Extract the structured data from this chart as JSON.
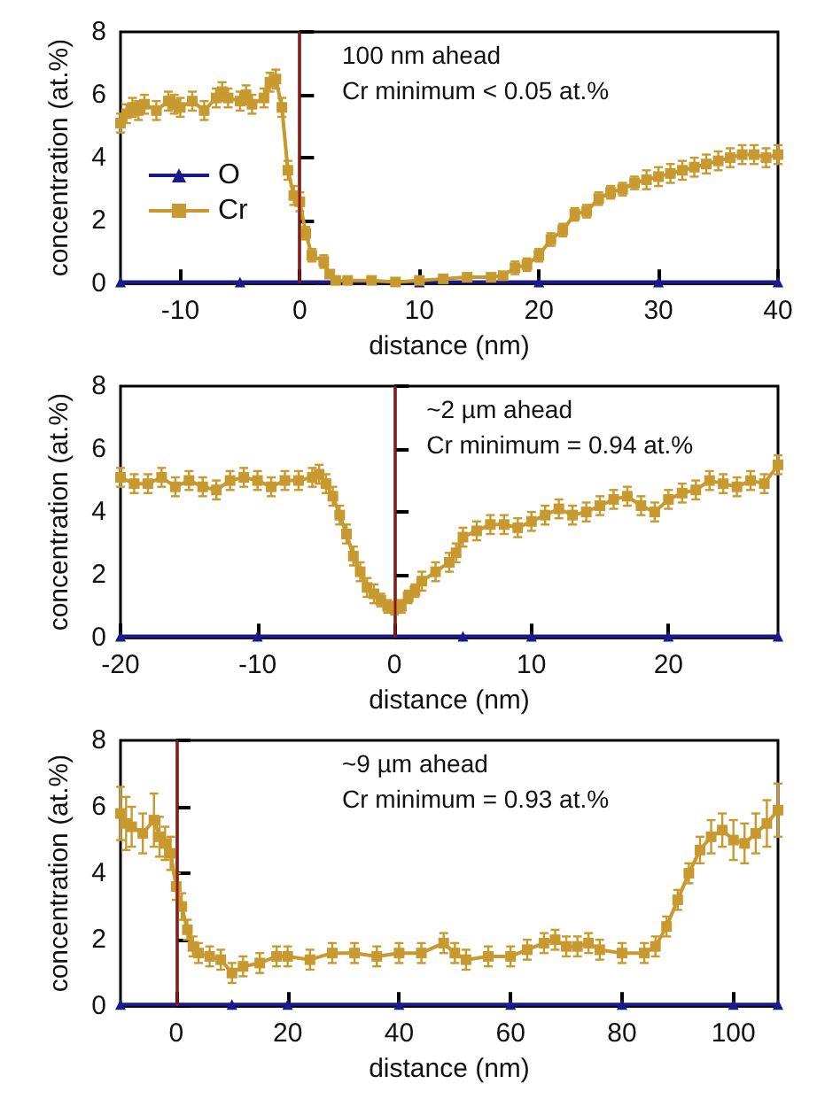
{
  "chart_data": [
    {
      "type": "line",
      "xlabel": "distance (nm)",
      "ylabel": "concentration (at.%)",
      "annotations": [
        "100 nm ahead",
        "Cr minimum < 0.05 at.%"
      ],
      "xlim": [
        -15,
        40
      ],
      "xticks": [
        -10,
        0,
        10,
        20,
        30,
        40
      ],
      "ylim": [
        0,
        8
      ],
      "yticks": [
        0,
        2,
        4,
        6,
        8
      ],
      "legend": "left",
      "grid": false,
      "ref_lines": [
        {
          "axis": "x",
          "value": 0,
          "color": "#8b1a1a"
        }
      ],
      "series": [
        {
          "name": "O",
          "color": "#1a1a8c",
          "marker": "triangle",
          "x": [
            -15,
            -5,
            10,
            20,
            30,
            40
          ],
          "values": [
            0.05,
            0.05,
            0.05,
            0.05,
            0.05,
            0.05
          ]
        },
        {
          "name": "Cr",
          "color": "#c8992e",
          "marker": "square",
          "x": [
            -15,
            -14.5,
            -14,
            -13.5,
            -13,
            -12,
            -11,
            -10.5,
            -10,
            -9,
            -8,
            -7,
            -6.5,
            -6,
            -5,
            -4.5,
            -4,
            -3,
            -2.5,
            -2,
            -1.5,
            -1,
            -0.5,
            0,
            0.5,
            1,
            2,
            2.5,
            3,
            4,
            6,
            8,
            10,
            12,
            14,
            16,
            17,
            18,
            19,
            20,
            21,
            22,
            23,
            24,
            25,
            26,
            27,
            28,
            29,
            30,
            31,
            32,
            33,
            34,
            35,
            36,
            37,
            38,
            39,
            40
          ],
          "values": [
            5.1,
            5.4,
            5.6,
            5.5,
            5.7,
            5.5,
            5.8,
            5.7,
            5.6,
            5.8,
            5.5,
            5.9,
            6.1,
            5.9,
            5.8,
            6.0,
            5.7,
            5.9,
            6.4,
            6.5,
            5.6,
            3.6,
            2.8,
            2.6,
            1.6,
            0.9,
            0.7,
            0.3,
            0.1,
            0.1,
            0.1,
            0.05,
            0.1,
            0.15,
            0.2,
            0.2,
            0.25,
            0.5,
            0.6,
            0.9,
            1.4,
            1.7,
            2.2,
            2.3,
            2.7,
            2.9,
            3.0,
            3.2,
            3.3,
            3.4,
            3.5,
            3.6,
            3.7,
            3.8,
            3.9,
            4.0,
            4.1,
            4.1,
            4.0,
            4.1
          ],
          "errors": [
            0.3,
            0.3,
            0.3,
            0.3,
            0.3,
            0.3,
            0.3,
            0.3,
            0.3,
            0.3,
            0.3,
            0.3,
            0.3,
            0.3,
            0.3,
            0.3,
            0.3,
            0.3,
            0.3,
            0.3,
            0.3,
            0.3,
            0.3,
            0.3,
            0.2,
            0.2,
            0.2,
            0.1,
            0.1,
            0.1,
            0.1,
            0.1,
            0.1,
            0.1,
            0.1,
            0.1,
            0.1,
            0.2,
            0.2,
            0.2,
            0.2,
            0.2,
            0.2,
            0.2,
            0.2,
            0.2,
            0.2,
            0.2,
            0.3,
            0.3,
            0.3,
            0.3,
            0.3,
            0.3,
            0.3,
            0.3,
            0.3,
            0.3,
            0.3,
            0.3
          ]
        }
      ]
    },
    {
      "type": "line",
      "xlabel": "distance (nm)",
      "ylabel": "concentration (at.%)",
      "annotations": [
        "~2 µm ahead",
        "Cr minimum = 0.94 at.%"
      ],
      "xlim": [
        -20,
        28
      ],
      "xticks": [
        -20,
        -10,
        0,
        10,
        20
      ],
      "ylim": [
        0,
        8
      ],
      "yticks": [
        0,
        2,
        4,
        6,
        8
      ],
      "legend": false,
      "grid": false,
      "ref_lines": [
        {
          "axis": "x",
          "value": 0,
          "color": "#8b1a1a"
        }
      ],
      "series": [
        {
          "color": "#1a1a8c",
          "marker": "triangle",
          "x": [
            -20,
            -10,
            5,
            10,
            20,
            28
          ],
          "values": [
            0.05,
            0.05,
            0.05,
            0.05,
            0.05,
            0.05
          ]
        },
        {
          "color": "#c8992e",
          "marker": "square",
          "x": [
            -20,
            -19,
            -18,
            -17,
            -16,
            -15,
            -14,
            -13,
            -12,
            -11,
            -10,
            -9,
            -8,
            -7,
            -6,
            -5.5,
            -5,
            -4.5,
            -4,
            -3.5,
            -3,
            -2.5,
            -2,
            -1.5,
            -1,
            -0.5,
            0,
            0.5,
            1,
            1.5,
            2,
            3,
            4,
            4.5,
            5,
            6,
            7,
            8,
            9,
            10,
            11,
            12,
            13,
            14,
            15,
            16,
            17,
            18,
            19,
            20,
            21,
            22,
            23,
            24,
            25,
            26,
            27,
            28
          ],
          "values": [
            5.1,
            4.9,
            4.9,
            5.1,
            4.8,
            5.0,
            4.8,
            4.7,
            5.0,
            5.1,
            5.0,
            4.8,
            5.0,
            5.0,
            5.1,
            5.2,
            4.9,
            4.5,
            3.9,
            3.3,
            2.6,
            2.1,
            1.6,
            1.4,
            1.2,
            1.0,
            0.94,
            1.0,
            1.3,
            1.5,
            1.8,
            2.1,
            2.4,
            2.7,
            3.2,
            3.4,
            3.6,
            3.6,
            3.5,
            3.7,
            3.9,
            4.1,
            3.9,
            4.0,
            4.2,
            4.4,
            4.5,
            4.2,
            4.0,
            4.4,
            4.6,
            4.7,
            5.0,
            4.9,
            4.8,
            5.0,
            4.9,
            5.5
          ],
          "errors": [
            0.3,
            0.3,
            0.3,
            0.3,
            0.3,
            0.3,
            0.3,
            0.3,
            0.3,
            0.3,
            0.3,
            0.3,
            0.3,
            0.3,
            0.3,
            0.3,
            0.3,
            0.3,
            0.3,
            0.3,
            0.3,
            0.3,
            0.3,
            0.3,
            0.2,
            0.2,
            0.2,
            0.2,
            0.2,
            0.2,
            0.3,
            0.3,
            0.3,
            0.3,
            0.3,
            0.3,
            0.3,
            0.3,
            0.3,
            0.3,
            0.3,
            0.3,
            0.3,
            0.3,
            0.3,
            0.3,
            0.3,
            0.3,
            0.3,
            0.3,
            0.3,
            0.3,
            0.3,
            0.3,
            0.3,
            0.3,
            0.3,
            0.3
          ]
        }
      ]
    },
    {
      "type": "line",
      "xlabel": "distance (nm)",
      "ylabel": "concentration (at.%)",
      "annotations": [
        "~9 µm ahead",
        "Cr minimum = 0.93 at.%"
      ],
      "xlim": [
        -10,
        108
      ],
      "xticks": [
        0,
        20,
        40,
        60,
        80,
        100
      ],
      "ylim": [
        0,
        8
      ],
      "yticks": [
        0,
        2,
        4,
        6,
        8
      ],
      "legend": false,
      "grid": false,
      "ref_lines": [
        {
          "axis": "x",
          "value": 0,
          "color": "#8b1a1a"
        }
      ],
      "series": [
        {
          "color": "#1a1a8c",
          "marker": "triangle",
          "x": [
            -10,
            10,
            20,
            40,
            60,
            80,
            100,
            108
          ],
          "values": [
            0.05,
            0.05,
            0.05,
            0.05,
            0.05,
            0.05,
            0.05,
            0.05
          ]
        },
        {
          "color": "#c8992e",
          "marker": "square",
          "x": [
            -10,
            -9,
            -8,
            -6,
            -4,
            -3,
            -2,
            -1,
            0,
            1,
            2,
            3,
            4,
            6,
            8,
            10,
            12,
            15,
            18,
            20,
            24,
            28,
            32,
            36,
            40,
            44,
            48,
            50,
            52,
            56,
            60,
            63,
            66,
            68,
            70,
            72,
            74,
            76,
            80,
            84,
            86,
            88,
            90,
            92,
            94,
            96,
            98,
            100,
            102,
            104,
            106,
            108
          ],
          "values": [
            5.8,
            5.5,
            5.4,
            5.2,
            5.6,
            5.1,
            4.9,
            4.6,
            3.6,
            3.0,
            2.3,
            1.8,
            1.6,
            1.5,
            1.4,
            1.0,
            1.2,
            1.3,
            1.5,
            1.5,
            1.4,
            1.6,
            1.6,
            1.5,
            1.6,
            1.6,
            1.9,
            1.6,
            1.4,
            1.5,
            1.5,
            1.7,
            1.9,
            2.0,
            1.8,
            1.8,
            1.9,
            1.7,
            1.6,
            1.6,
            1.8,
            2.4,
            3.2,
            4.0,
            4.7,
            5.1,
            5.3,
            5.0,
            4.9,
            5.2,
            5.5,
            5.9
          ],
          "errors": [
            0.8,
            0.8,
            0.6,
            0.6,
            0.8,
            0.6,
            0.5,
            0.5,
            0.4,
            0.4,
            0.3,
            0.3,
            0.3,
            0.3,
            0.3,
            0.3,
            0.3,
            0.3,
            0.3,
            0.3,
            0.3,
            0.3,
            0.3,
            0.3,
            0.3,
            0.3,
            0.3,
            0.3,
            0.3,
            0.3,
            0.3,
            0.3,
            0.3,
            0.3,
            0.3,
            0.3,
            0.3,
            0.3,
            0.3,
            0.3,
            0.3,
            0.3,
            0.3,
            0.3,
            0.4,
            0.5,
            0.5,
            0.6,
            0.6,
            0.6,
            0.7,
            0.8
          ]
        }
      ]
    }
  ]
}
